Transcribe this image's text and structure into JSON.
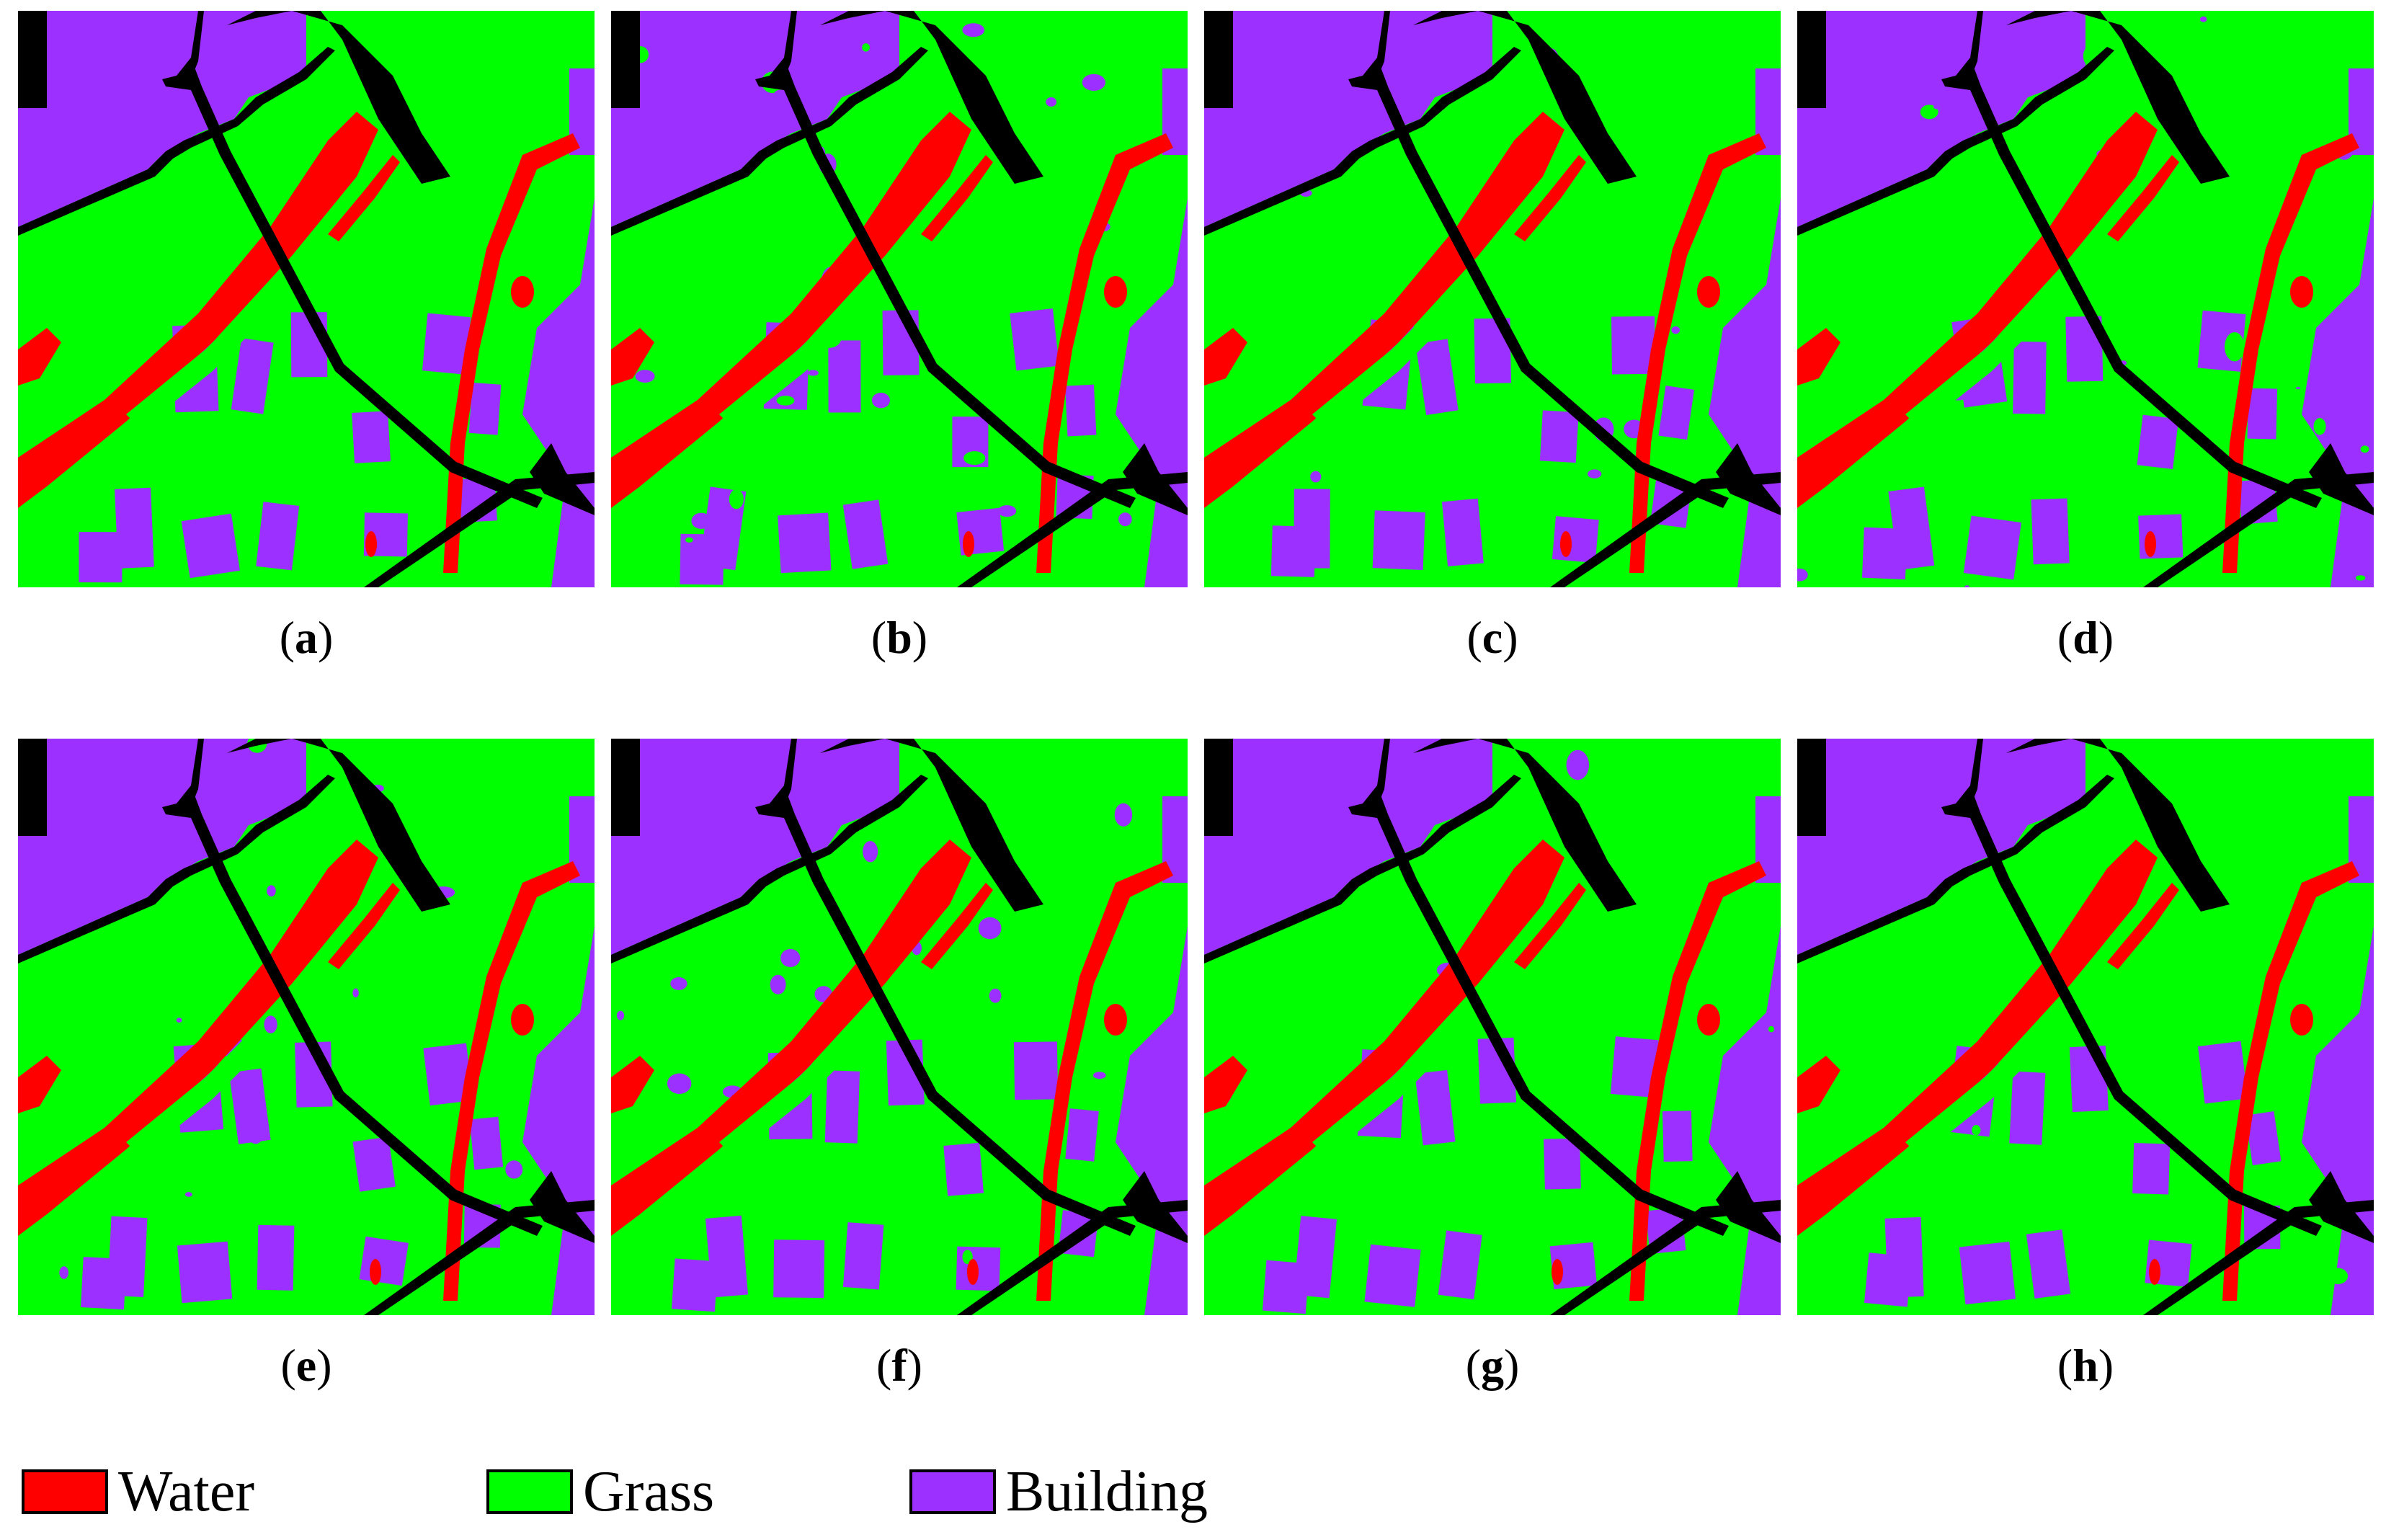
{
  "colors": {
    "water": "#ff0000",
    "grass": "#00ff00",
    "building": "#9b30ff",
    "road": "#000000"
  },
  "panels": [
    {
      "id": "a",
      "caption": "a",
      "variant": 0
    },
    {
      "id": "b",
      "caption": "b",
      "variant": 1
    },
    {
      "id": "c",
      "caption": "c",
      "variant": 2
    },
    {
      "id": "d",
      "caption": "d",
      "variant": 3
    },
    {
      "id": "e",
      "caption": "e",
      "variant": 4
    },
    {
      "id": "f",
      "caption": "f",
      "variant": 5
    },
    {
      "id": "g",
      "caption": "g",
      "variant": 6
    },
    {
      "id": "h",
      "caption": "h",
      "variant": 7
    }
  ],
  "legend": [
    {
      "label": "Water",
      "color": "#ff0000"
    },
    {
      "label": "Grass",
      "color": "#00ff00"
    },
    {
      "label": "Building",
      "color": "#9b30ff"
    }
  ]
}
